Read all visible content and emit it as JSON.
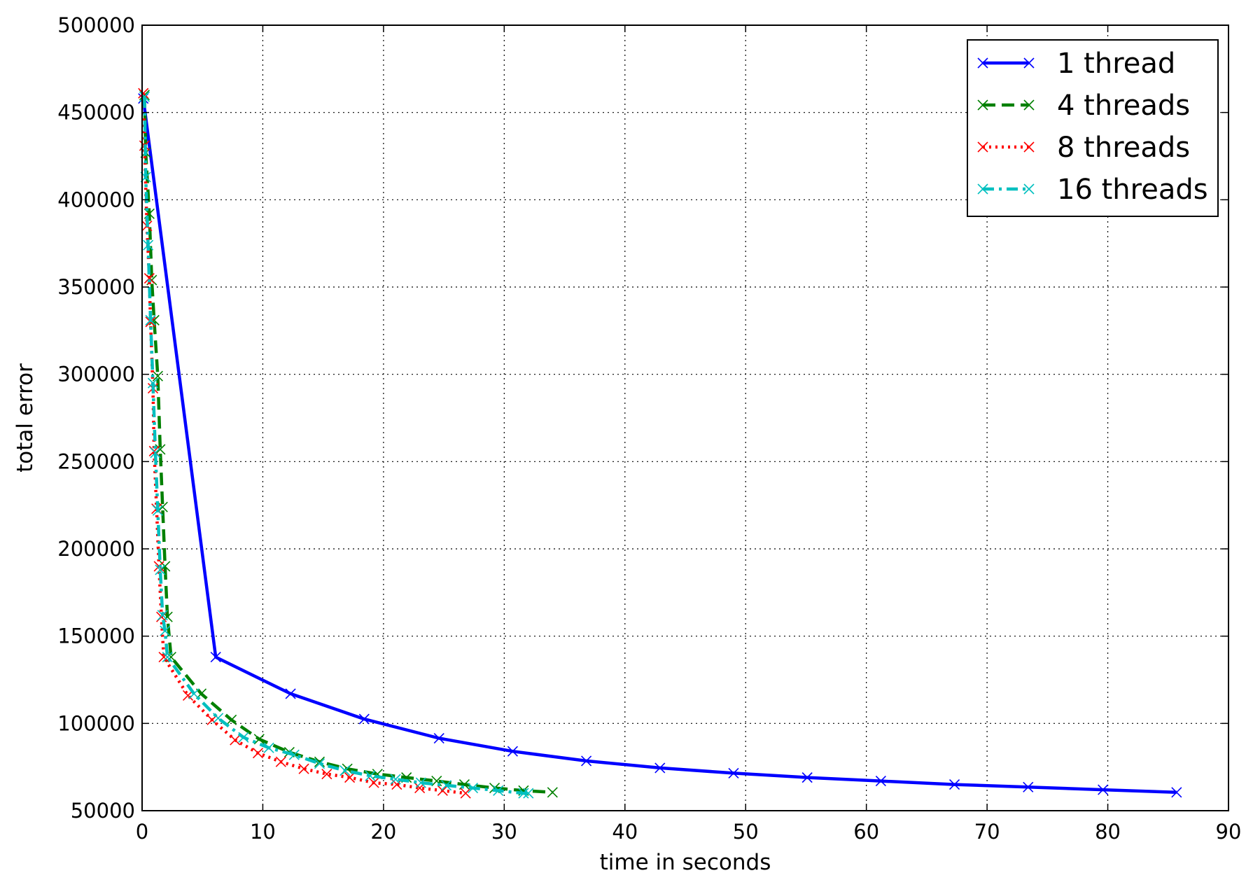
{
  "chart_data": {
    "type": "line",
    "xlabel": "time in seconds",
    "ylabel": "total error",
    "xlim": [
      0,
      90
    ],
    "ylim": [
      50000,
      500000
    ],
    "x_ticks": [
      0,
      10,
      20,
      30,
      40,
      50,
      60,
      70,
      80,
      90
    ],
    "y_ticks": [
      50000,
      100000,
      150000,
      200000,
      250000,
      300000,
      350000,
      400000,
      450000,
      500000
    ],
    "grid": true,
    "legend_position": "top-right",
    "series": [
      {
        "name": "1 thread",
        "color": "#0000ff",
        "line_style": "solid",
        "marker": "x",
        "x": [
          0.1,
          6.1,
          12.3,
          18.4,
          24.6,
          30.7,
          36.8,
          42.9,
          49.0,
          55.1,
          61.2,
          67.3,
          73.4,
          79.6,
          85.7
        ],
        "y": [
          458000,
          138000,
          117000,
          102500,
          91500,
          84000,
          78500,
          74500,
          71500,
          69000,
          67000,
          65000,
          63500,
          62000,
          60500
        ]
      },
      {
        "name": "4 threads",
        "color": "#008000",
        "line_style": "dashed",
        "marker": "x",
        "x": [
          0.2,
          0.3,
          0.6,
          0.8,
          1.0,
          1.3,
          1.5,
          1.7,
          1.9,
          2.1,
          2.4,
          4.9,
          7.4,
          9.7,
          12.2,
          14.7,
          17.0,
          19.5,
          21.9,
          24.4,
          26.7,
          29.2,
          31.6,
          34.0
        ],
        "y": [
          460000,
          427000,
          392000,
          354000,
          331000,
          299000,
          257000,
          224000,
          190000,
          161000,
          138000,
          117000,
          102000,
          91000,
          83500,
          78000,
          74000,
          71000,
          69000,
          67000,
          65000,
          63000,
          61500,
          60500
        ]
      },
      {
        "name": "8 threads",
        "color": "#ff0000",
        "line_style": "dotted",
        "marker": "x",
        "x": [
          0.1,
          0.2,
          0.4,
          0.6,
          0.7,
          0.9,
          1.0,
          1.2,
          1.4,
          1.6,
          1.8,
          3.8,
          5.8,
          7.7,
          9.6,
          11.5,
          13.4,
          15.3,
          17.2,
          19.2,
          21.1,
          23.0,
          24.9,
          26.8
        ],
        "y": [
          461000,
          431000,
          385000,
          355000,
          330000,
          292000,
          256000,
          223000,
          190000,
          161000,
          138000,
          116000,
          102000,
          90500,
          83000,
          78000,
          74000,
          71000,
          69000,
          66000,
          65000,
          63000,
          61500,
          60000
        ]
      },
      {
        "name": "16 threads",
        "color": "#00bfbf",
        "line_style": "dashdot",
        "marker": "x",
        "x": [
          0.2,
          0.3,
          0.5,
          0.7,
          0.9,
          1.1,
          1.3,
          1.5,
          1.7,
          1.9,
          2.1,
          4.3,
          6.3,
          8.4,
          10.5,
          12.6,
          14.7,
          16.8,
          18.9,
          21.0,
          23.1,
          25.2,
          27.4,
          29.5,
          31.6,
          32.0
        ],
        "y": [
          459000,
          413000,
          374000,
          331000,
          295000,
          255000,
          222000,
          188000,
          162000,
          153000,
          138000,
          117000,
          103000,
          92000,
          86000,
          82000,
          77000,
          73000,
          70000,
          68000,
          66000,
          64500,
          63000,
          61500,
          60000,
          60000
        ]
      }
    ]
  }
}
